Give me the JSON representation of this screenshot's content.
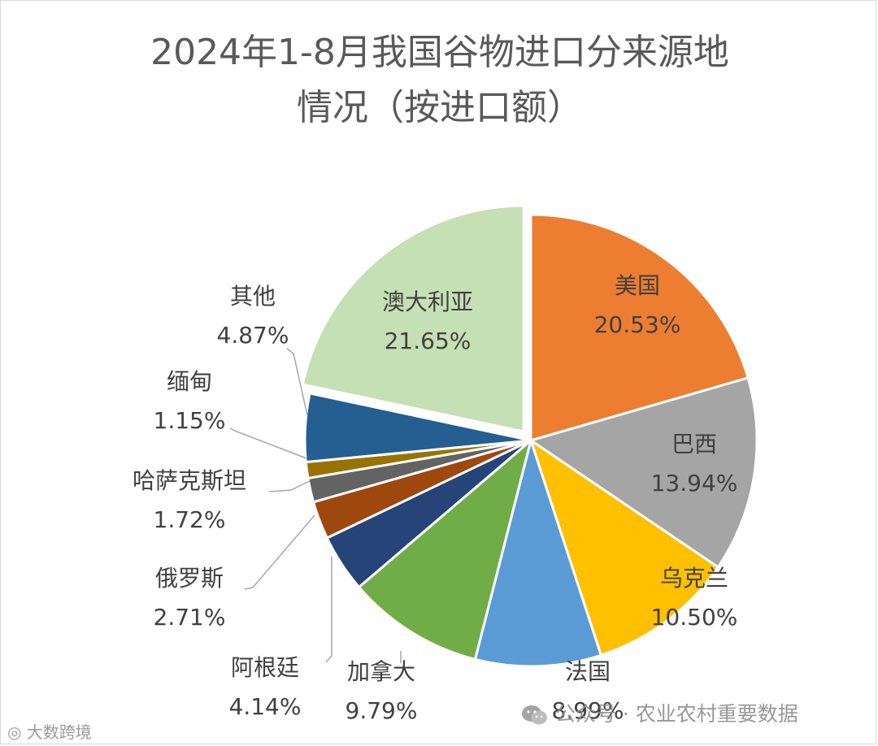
{
  "chart_data": {
    "type": "pie",
    "title_line1": "2024年1-8月我国谷物进口分来源地",
    "title_line2": "情况（按进口额）",
    "slices": [
      {
        "label": "美国",
        "value": 20.53,
        "pct": "20.53%",
        "color": "#ED7D31"
      },
      {
        "label": "巴西",
        "value": 13.94,
        "pct": "13.94%",
        "color": "#A5A5A5"
      },
      {
        "label": "乌克兰",
        "value": 10.5,
        "pct": "10.50%",
        "color": "#FFC000"
      },
      {
        "label": "法国",
        "value": 8.99,
        "pct": "8.99%",
        "color": "#5B9BD5"
      },
      {
        "label": "加拿大",
        "value": 9.79,
        "pct": "9.79%",
        "color": "#70AD47"
      },
      {
        "label": "阿根廷",
        "value": 4.14,
        "pct": "4.14%",
        "color": "#264478"
      },
      {
        "label": "俄罗斯",
        "value": 2.71,
        "pct": "2.71%",
        "color": "#9E480E"
      },
      {
        "label": "哈萨克斯坦",
        "value": 1.72,
        "pct": "1.72%",
        "color": "#636363"
      },
      {
        "label": "缅甸",
        "value": 1.15,
        "pct": "1.15%",
        "color": "#997300"
      },
      {
        "label": "其他",
        "value": 4.87,
        "pct": "4.87%",
        "color": "#255E91"
      },
      {
        "label": "澳大利亚",
        "value": 21.65,
        "pct": "21.65%",
        "color": "#C5E0B4"
      }
    ]
  },
  "watermark": {
    "wechat_text": "公众号 · 农业农村重要数据",
    "brand_text": "大数跨境"
  }
}
